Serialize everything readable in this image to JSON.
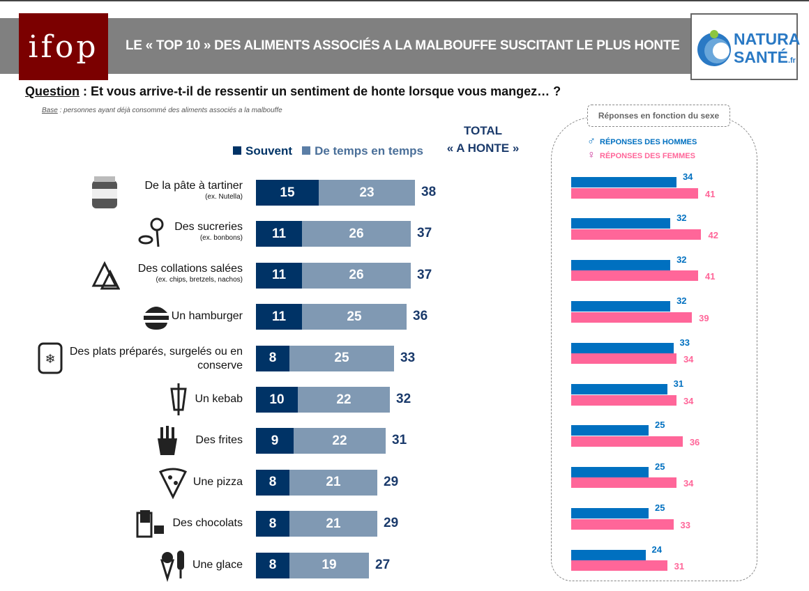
{
  "header": {
    "logo_left": "ifop",
    "title": "LE « TOP 10 » DES ALIMENTS ASSOCIÉS A LA MALBOUFFE SUSCITANT LE PLUS HONTE",
    "logo_right_line1": "NATURA",
    "logo_right_line2": "SANTÉ",
    "logo_right_suffix": ".fr"
  },
  "question": {
    "label": "Question",
    "text": " : Et vous arrive-t-il de ressentir un sentiment de honte lorsque vous mangez… ?"
  },
  "base": {
    "label": "Base",
    "text": " : personnes ayant déjà consommé des aliments associés a la malbouffe"
  },
  "colors": {
    "souvent": "#003366",
    "temps": "#8099b3",
    "hommes": "#0070c0",
    "femmes": "#ff6699",
    "total": "#1a3a6b"
  },
  "chart_data": [
    {
      "type": "bar",
      "stacked": true,
      "orientation": "horizontal",
      "legend": [
        "Souvent",
        "De temps en temps"
      ],
      "total_label_line1": "TOTAL",
      "total_label_line2": "« A HONTE »",
      "categories": [
        {
          "label": "De la pâte à tartiner",
          "sub": "(ex. Nutella)",
          "icon": "jar-icon"
        },
        {
          "label": "Des sucreries",
          "sub": "(ex. bonbons)",
          "icon": "candy-icon"
        },
        {
          "label": "Des collations salées",
          "sub": "(ex. chips, bretzels, nachos)",
          "icon": "nachos-icon"
        },
        {
          "label": "Un hamburger",
          "sub": "",
          "icon": "hamburger-icon"
        },
        {
          "label": "Des plats préparés, surgelés ou en conserve",
          "sub": "",
          "icon": "frozen-food-icon"
        },
        {
          "label": "Un kebab",
          "sub": "",
          "icon": "kebab-icon"
        },
        {
          "label": "Des frites",
          "sub": "",
          "icon": "fries-icon"
        },
        {
          "label": "Une pizza",
          "sub": "",
          "icon": "pizza-icon"
        },
        {
          "label": "Des chocolats",
          "sub": "",
          "icon": "chocolate-icon"
        },
        {
          "label": "Une glace",
          "sub": "",
          "icon": "ice-cream-icon"
        }
      ],
      "series": [
        {
          "name": "Souvent",
          "values": [
            15,
            11,
            11,
            11,
            8,
            10,
            9,
            8,
            8,
            8
          ]
        },
        {
          "name": "De temps en temps",
          "values": [
            23,
            26,
            26,
            25,
            25,
            22,
            22,
            21,
            21,
            19
          ]
        }
      ],
      "totals": [
        38,
        37,
        37,
        36,
        33,
        32,
        31,
        29,
        29,
        27
      ]
    },
    {
      "type": "bar",
      "orientation": "horizontal",
      "title": "Réponses en fonction du sexe",
      "series": [
        {
          "name": "RÉPONSES DES HOMMES",
          "icon": "male-icon",
          "values": [
            34,
            32,
            32,
            32,
            33,
            31,
            25,
            25,
            25,
            24
          ]
        },
        {
          "name": "RÉPONSES DES FEMMES",
          "icon": "female-icon",
          "values": [
            41,
            42,
            41,
            39,
            34,
            34,
            36,
            34,
            33,
            31
          ]
        }
      ]
    }
  ]
}
